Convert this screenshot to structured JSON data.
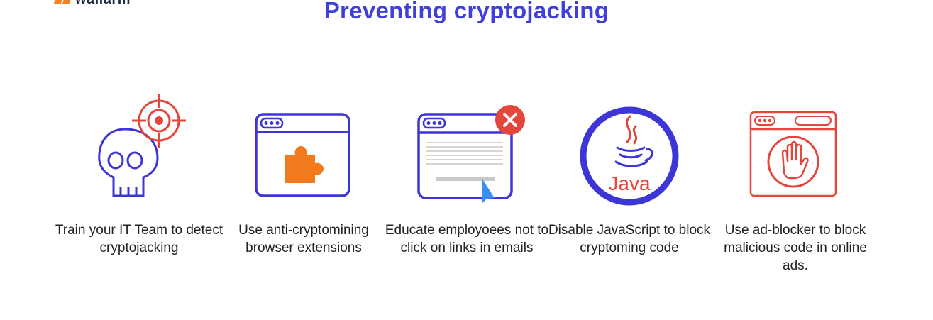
{
  "brand": {
    "name": "wallarm"
  },
  "title": "Preventing cryptojacking",
  "icons": {
    "skull": "skull-with-target-icon",
    "extension": "browser-extension-puzzle-icon",
    "email": "browser-window-close-icon",
    "java": "java-logo-icon",
    "adblock": "browser-stop-hand-icon"
  },
  "colors": {
    "title": "#3f3fd9",
    "icon_blue": "#3d35d6",
    "icon_red": "#e4463b",
    "icon_orange": "#f07a1d"
  },
  "items": [
    {
      "caption": "Train your IT Team to detect cryptojacking"
    },
    {
      "caption": "Use anti-cryptomining browser extensions"
    },
    {
      "caption": "Educate employoees not to click on links in emails"
    },
    {
      "caption": "Disable JavaScript to block cryptoming code"
    },
    {
      "caption": "Use ad-blocker to block malicious code in online ads."
    }
  ],
  "java_label": "Java"
}
